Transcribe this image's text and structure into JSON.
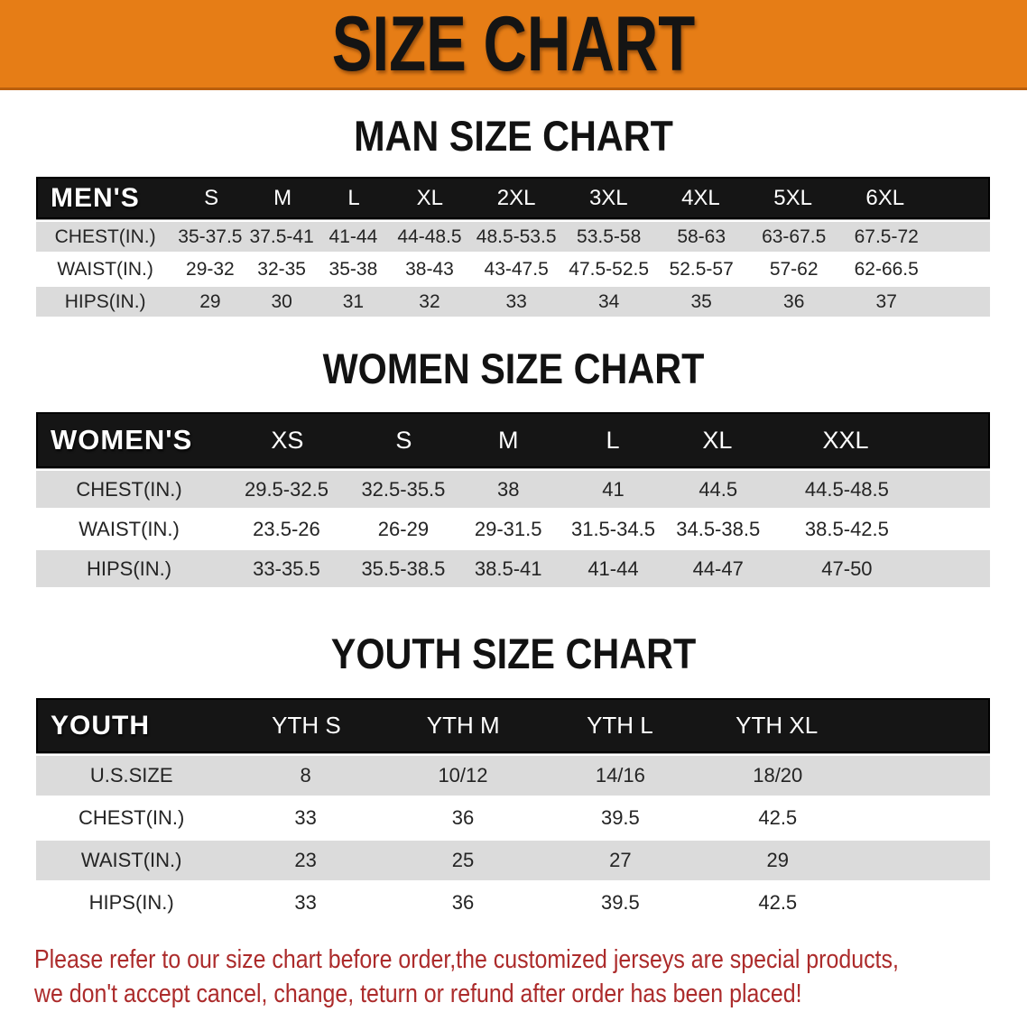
{
  "banner": {
    "title": "SIZE CHART",
    "bg_color": "#E67D16",
    "text_color": "#141414"
  },
  "sections": {
    "men": {
      "heading": "MAN SIZE CHART"
    },
    "women": {
      "heading": "WOMEN SIZE CHART"
    },
    "youth": {
      "heading": "YOUTH SIZE CHART"
    }
  },
  "tables": {
    "men": {
      "group_label": "MEN'S",
      "sizes": [
        "S",
        "M",
        "L",
        "XL",
        "2XL",
        "3XL",
        "4XL",
        "5XL",
        "6XL"
      ],
      "rows": [
        {
          "label": "CHEST(IN.)",
          "values": [
            "35-37.5",
            "37.5-41",
            "41-44",
            "44-48.5",
            "48.5-53.5",
            "53.5-58",
            "58-63",
            "63-67.5",
            "67.5-72"
          ]
        },
        {
          "label": "WAIST(IN.)",
          "values": [
            "29-32",
            "32-35",
            "35-38",
            "38-43",
            "43-47.5",
            "47.5-52.5",
            "52.5-57",
            "57-62",
            "62-66.5"
          ]
        },
        {
          "label": "HIPS(IN.)",
          "values": [
            "29",
            "30",
            "31",
            "32",
            "33",
            "34",
            "35",
            "36",
            "37"
          ]
        }
      ]
    },
    "women": {
      "group_label": "WOMEN'S",
      "sizes": [
        "XS",
        "S",
        "M",
        "L",
        "XL",
        "XXL"
      ],
      "rows": [
        {
          "label": "CHEST(IN.)",
          "values": [
            "29.5-32.5",
            "32.5-35.5",
            "38",
            "41",
            "44.5",
            "44.5-48.5"
          ]
        },
        {
          "label": "WAIST(IN.)",
          "values": [
            "23.5-26",
            "26-29",
            "29-31.5",
            "31.5-34.5",
            "34.5-38.5",
            "38.5-42.5"
          ]
        },
        {
          "label": "HIPS(IN.)",
          "values": [
            "33-35.5",
            "35.5-38.5",
            "38.5-41",
            "41-44",
            "44-47",
            "47-50"
          ]
        }
      ]
    },
    "youth": {
      "group_label": "YOUTH",
      "sizes": [
        "YTH S",
        "YTH M",
        "YTH L",
        "YTH XL"
      ],
      "rows": [
        {
          "label": "U.S.SIZE",
          "values": [
            "8",
            "10/12",
            "14/16",
            "18/20"
          ]
        },
        {
          "label": "CHEST(IN.)",
          "values": [
            "33",
            "36",
            "39.5",
            "42.5"
          ]
        },
        {
          "label": "WAIST(IN.)",
          "values": [
            "23",
            "25",
            "27",
            "29"
          ]
        },
        {
          "label": "HIPS(IN.)",
          "values": [
            "33",
            "36",
            "39.5",
            "42.5"
          ]
        }
      ]
    }
  },
  "note": {
    "line1": "Please refer to our size chart before order,the customized jerseys are special products,",
    "line2": "we don't accept cancel, change, teturn or refund after order has been placed!",
    "color": "#AC2B2B"
  },
  "colors": {
    "banner_orange": "#E67D16",
    "header_bar_black": "#151515",
    "row_gray": "#DBDBDB",
    "row_white": "#FFFFFF",
    "table_text": "#242424",
    "note_red": "#AC2B2B"
  }
}
